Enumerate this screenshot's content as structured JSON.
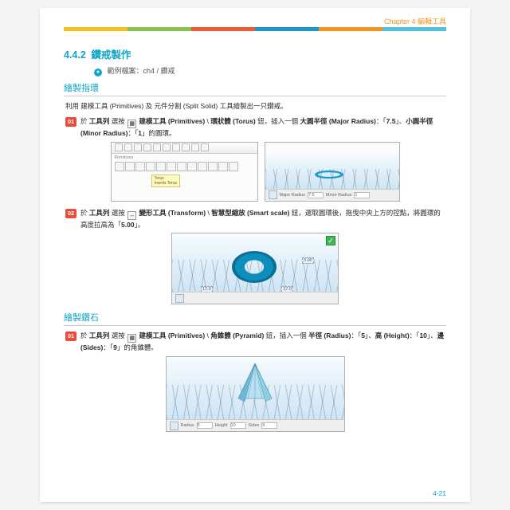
{
  "chapter": {
    "label": "Chapter 4 編輯工具"
  },
  "rainbow_colors": [
    "#f2c41f",
    "#8bc34a",
    "#ef5b2f",
    "#2196c9",
    "#f7941e",
    "#4fc3d9"
  ],
  "section": {
    "number": "4.4.2",
    "title": "鑽戒製作"
  },
  "example": {
    "prefix": "範例檔案：",
    "path": "ch4 / 鑽戒"
  },
  "hdr_ring": "繪製指環",
  "intro_ring": "利用 建模工具 (Primitives) 及 元件分割 (Split Solid) 工具繪製出一只鑽戒。",
  "step1": {
    "num": "01",
    "t1": "於 ",
    "t2": "工具列",
    "t3": " 選按 ",
    "t4": " ",
    "t5": "建模工具 (Primitives)",
    "t6": " \\ ",
    "t7": "環狀體 (Torus)",
    "t8": " 鈕，插入一個 ",
    "t9": "大圓半徑 (Major Radius)",
    "t10": "：「",
    "t11": "7.5",
    "t12": "」、",
    "t13": "小圓半徑 (Minor Radius)",
    "t14": "：「",
    "t15": "1",
    "t16": "」的圓環。"
  },
  "shot1": {
    "primitives_label": "Primitives",
    "tooltip_l1": "Torus",
    "tooltip_l2": "Inserts Torus"
  },
  "shot2": {
    "major_label": "Major Radius",
    "major_val": "7.5",
    "minor_label": "Minor Radius",
    "minor_val": "1"
  },
  "step2": {
    "num": "02",
    "t1": "於 ",
    "t2": "工具列",
    "t3": " 選按 ",
    "t4": "變形工具 (Transform)",
    "t5": " \\ ",
    "t6": "智慧型縮放 (Smart scale)",
    "t7": " 鈕，選取圓環後，拖曳中央上方的控點，將圓環的高度拉高為「",
    "t8": "5.00",
    "t9": "」。"
  },
  "hdr_diamond": "繪製鑽石",
  "step3": {
    "num": "01",
    "t1": "於 ",
    "t2": "工具列",
    "t3": " 選按 ",
    "t4": "建模工具 (Primitives)",
    "t5": " \\ ",
    "t6": "角錐體 (Pyramid)",
    "t7": " 鈕，插入一個 ",
    "t8": "半徑 (Radius)",
    "t9": "：「",
    "t10": "5",
    "t11": "」、",
    "t12": "高 (Height)",
    "t13": "：「",
    "t14": "10",
    "t15": "」、",
    "t16": "邊 (Sides)",
    "t17": "：「",
    "t18": "9",
    "t19": "」的角錐體。"
  },
  "shot4": {
    "radius_label": "Radius",
    "radius_val": "5",
    "height_label": "Height",
    "height_val": "10",
    "sides_label": "Sides",
    "sides_val": "9"
  },
  "page_num": "4-21",
  "colors": {
    "accent": "#0ea5c6",
    "step_badge": "#e74c3c",
    "torus": "#1b9dc9",
    "pyramid_light": "#b8e2f2",
    "pyramid_dark": "#6fb9d6"
  }
}
